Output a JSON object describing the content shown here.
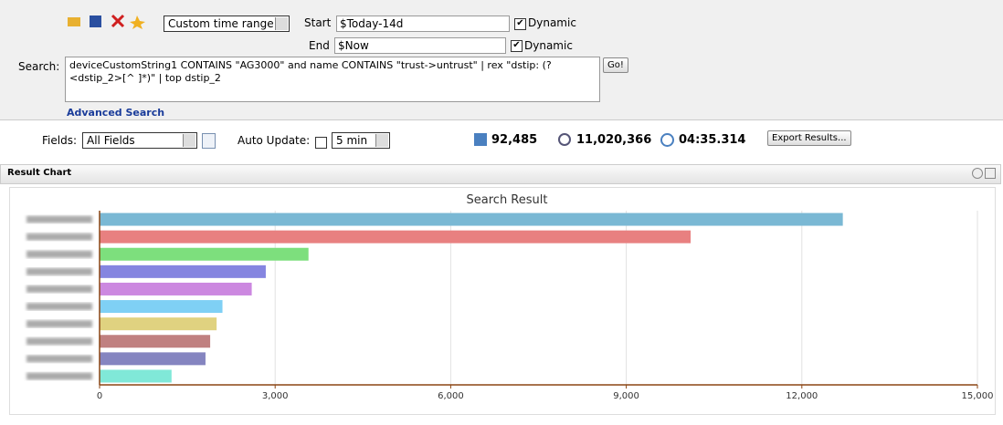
{
  "toolbar": {
    "time_range": "Custom time range",
    "start_label": "Start",
    "start_value": "$Today-14d",
    "start_dynamic": "Dynamic",
    "end_label": "End",
    "end_value": "$Now",
    "end_dynamic": "Dynamic"
  },
  "search": {
    "label": "Search:",
    "query": "deviceCustomString1 CONTAINS \"AG3000\" and name CONTAINS \"trust->untrust\" | rex \"dstip: (?<dstip_2>[^ ]*)\" | top dstip_2",
    "go": "Go!",
    "advanced": "Advanced Search"
  },
  "status": {
    "fields_label": "Fields:",
    "fields_value": "All Fields",
    "auto_update_label": "Auto Update:",
    "auto_update_value": "5 min",
    "events": "92,485",
    "scanned": "11,020,366",
    "elapsed": "04:35.314",
    "export": "Export Results..."
  },
  "panel": {
    "title": "Result Chart"
  },
  "chart_data": {
    "type": "hbar",
    "title": "Search Result",
    "categories": [
      null,
      null,
      null,
      null,
      null,
      null,
      null,
      null,
      null,
      null
    ],
    "values": [
      12700,
      10100,
      3570,
      2840,
      2600,
      2100,
      2000,
      1890,
      1810,
      1230
    ],
    "colors": [
      "#7ab8d4",
      "#e88080",
      "#7ddf7d",
      "#8585e0",
      "#cc88e0",
      "#7fd0f5",
      "#e0d280",
      "#c08080",
      "#8585c0",
      "#80e8d8"
    ],
    "xlim": [
      0,
      15000
    ],
    "xticks": [
      0,
      {
        "value": 3000,
        "label": "3,000"
      },
      {
        "value": 6000,
        "label": "6,000"
      },
      {
        "value": 9000,
        "label": "9,000"
      },
      {
        "value": 12000,
        "label": "12,000"
      },
      {
        "value": 15000,
        "label": "15,000"
      }
    ],
    "grid": true
  }
}
